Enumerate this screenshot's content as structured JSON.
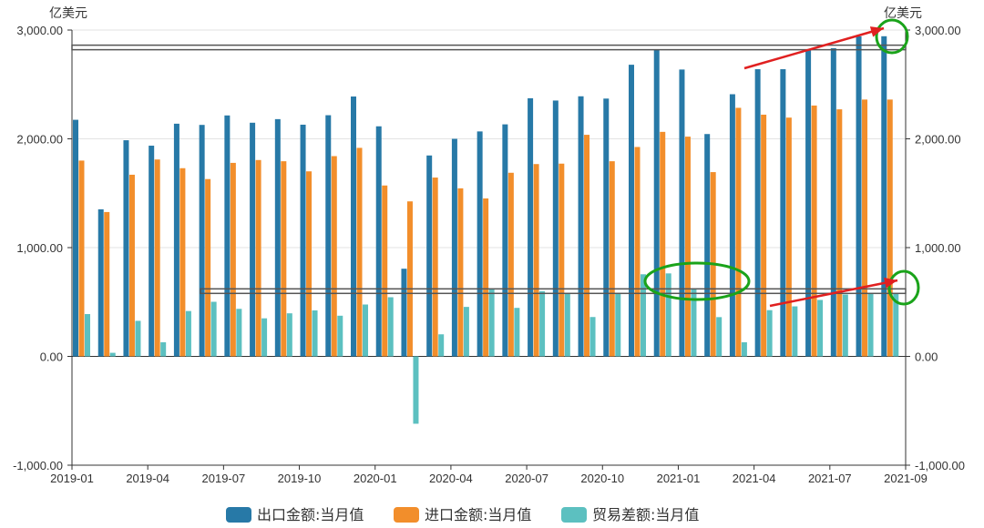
{
  "chart_data": {
    "type": "bar",
    "unit_left": "亿美元",
    "unit_right": "亿美元",
    "ylim": [
      -1000,
      3000
    ],
    "y_ticks": [
      "3,000.00",
      "2,000.00",
      "1,000.00",
      "0.00",
      "-1,000.00"
    ],
    "x_tick_labels": [
      "2019-01",
      "2019-04",
      "2019-07",
      "2019-10",
      "2020-01",
      "2020-04",
      "2020-07",
      "2020-10",
      "2021-01",
      "2021-04",
      "2021-07",
      "2021-09"
    ],
    "categories": [
      "2019-01",
      "2019-02",
      "2019-03",
      "2019-04",
      "2019-05",
      "2019-06",
      "2019-07",
      "2019-08",
      "2019-09",
      "2019-10",
      "2019-11",
      "2019-12",
      "2020-01",
      "2020-02",
      "2020-03",
      "2020-04",
      "2020-05",
      "2020-06",
      "2020-07",
      "2020-08",
      "2020-09",
      "2020-10",
      "2020-11",
      "2020-12",
      "2021-01",
      "2021-02",
      "2021-03",
      "2021-04",
      "2021-05",
      "2021-06",
      "2021-07",
      "2021-08",
      "2021-09"
    ],
    "series": [
      {
        "name": "出口金额:当月值",
        "color": "#2779a7",
        "values": [
          2175,
          1352,
          1987,
          1937,
          2139,
          2128,
          2215,
          2148,
          2181,
          2130,
          2217,
          2389,
          2115,
          806,
          1847,
          2000,
          2068,
          2133,
          2373,
          2352,
          2391,
          2370,
          2681,
          2820,
          2637,
          2044,
          2410,
          2640,
          2640,
          2820,
          2833,
          2942,
          2943
        ]
      },
      {
        "name": "进口金额:当月值",
        "color": "#f28e2b",
        "values": [
          1800,
          1327,
          1670,
          1810,
          1730,
          1630,
          1779,
          1805,
          1794,
          1701,
          1841,
          1917,
          1571,
          1425,
          1644,
          1545,
          1452,
          1688,
          1768,
          1772,
          2037,
          1794,
          1925,
          2064,
          2020,
          1694,
          2285,
          2222,
          2195,
          2306,
          2271,
          2361,
          2361
        ]
      },
      {
        "name": "贸易差额:当月值",
        "color": "#5cc0c0",
        "values": [
          389,
          33,
          327,
          130,
          417,
          502,
          437,
          350,
          396,
          423,
          374,
          477,
          544,
          -619,
          203,
          455,
          616,
          446,
          599,
          580,
          362,
          574,
          755,
          763,
          620,
          361,
          130,
          425,
          460,
          519,
          569,
          583,
          583
        ]
      }
    ],
    "legend_position": "bottom",
    "annotations": [
      {
        "type": "ellipse",
        "color": "#1aa31a",
        "near": "2021-09 出口金额 & y-axis 3,000.00"
      },
      {
        "type": "ellipse",
        "color": "#1aa31a",
        "near": "2020-12 to 2021-02 贸易差额"
      },
      {
        "type": "ellipse",
        "color": "#1aa31a",
        "near": "2021-09 贸易差额"
      },
      {
        "type": "arrow",
        "color": "#e02020",
        "points_to": "2021-09 出口金额"
      },
      {
        "type": "arrow",
        "color": "#e02020",
        "points_to": "2021-09 贸易差额"
      },
      {
        "type": "horizontal-line",
        "color": "#666666",
        "level": 2840
      },
      {
        "type": "horizontal-line",
        "color": "#666666",
        "level": 600
      }
    ]
  }
}
